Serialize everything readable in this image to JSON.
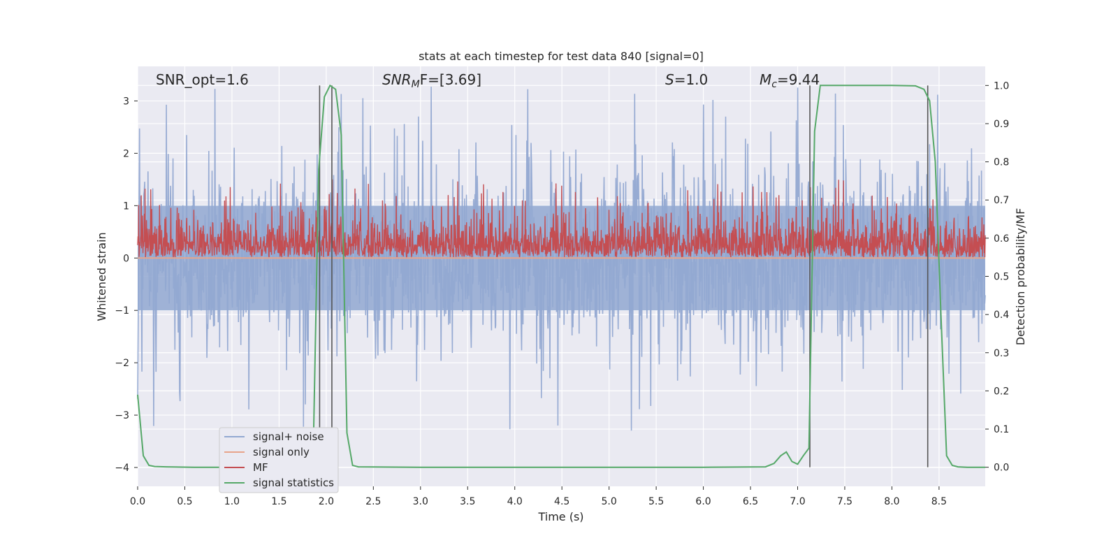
{
  "chart_data": {
    "type": "line",
    "title": "stats at each timestep for test data 840 [signal=0]",
    "xlabel": "Time (s)",
    "ylabel_left": "Whitened strain",
    "ylabel_right": "Detection probability/MF",
    "xlim": [
      0.0,
      8.99
    ],
    "ylim_left": [
      -4.36,
      3.66
    ],
    "ylim_right": [
      -0.05,
      1.05
    ],
    "x_ticks": [
      0.0,
      0.5,
      1.0,
      1.5,
      2.0,
      2.5,
      3.0,
      3.5,
      4.0,
      4.5,
      5.0,
      5.5,
      6.0,
      6.5,
      7.0,
      7.5,
      8.0,
      8.5
    ],
    "x_tick_labels": [
      "0.0",
      "0.5",
      "1.0",
      "1.5",
      "2.0",
      "2.5",
      "3.0",
      "3.5",
      "4.0",
      "4.5",
      "5.0",
      "5.5",
      "6.0",
      "6.5",
      "7.0",
      "7.5",
      "8.0",
      "8.5"
    ],
    "y_ticks_left": [
      -4,
      -3,
      -2,
      -1,
      0,
      1,
      2,
      3
    ],
    "y_tick_labels_left": [
      "−4",
      "−3",
      "−2",
      "−1",
      "0",
      "1",
      "2",
      "3"
    ],
    "y_ticks_right": [
      0.0,
      0.1,
      0.2,
      0.3,
      0.4,
      0.5,
      0.6,
      0.7,
      0.8,
      0.9,
      1.0
    ],
    "y_tick_labels_right": [
      "0.0",
      "0.1",
      "0.2",
      "0.3",
      "0.4",
      "0.5",
      "0.6",
      "0.7",
      "0.8",
      "0.9",
      "1.0"
    ],
    "grid": true,
    "legend_position": "lower-left",
    "annotations": {
      "snr_opt": "SNR_opt=1.6",
      "snr_mf_main": "SNR",
      "snr_mf_sub": "M",
      "snr_mf_rest": "F=[3.69]",
      "s_main": "S",
      "s_rest": "=1.0",
      "mc_main": "M",
      "mc_sub": "c",
      "mc_rest": "=9.44"
    },
    "series": [
      {
        "name": "signal+ noise",
        "color": "#92a8d1",
        "axis": "left",
        "description_level": "white noise approx. between -2.6 and 3.3 with rare spikes to -4.0",
        "envelope": {
          "low": -1.5,
          "high": 1.8,
          "spike_max": 3.3,
          "spike_min": -4.0
        }
      },
      {
        "name": "signal only",
        "color": "#e8a48a",
        "axis": "left",
        "values_constant": 0.0
      },
      {
        "name": "MF",
        "color": "#c44e52",
        "axis": "right",
        "envelope": {
          "low": 0.55,
          "high": 0.78
        }
      },
      {
        "name": "signal statistics",
        "color": "#55a868",
        "axis": "right",
        "x": [
          0.0,
          0.06,
          0.12,
          0.18,
          0.3,
          0.6,
          1.0,
          1.5,
          1.8,
          1.86,
          1.92,
          1.98,
          2.04,
          2.1,
          2.16,
          2.22,
          2.28,
          2.34,
          3.0,
          4.0,
          5.0,
          6.0,
          6.66,
          6.75,
          6.82,
          6.88,
          6.94,
          7.0,
          7.06,
          7.12,
          7.18,
          7.24,
          7.5,
          8.0,
          8.25,
          8.34,
          8.4,
          8.46,
          8.52,
          8.58,
          8.64,
          8.7,
          8.8,
          8.99
        ],
        "y": [
          0.19,
          0.03,
          0.005,
          0.002,
          0.001,
          0.0,
          0.0,
          0.0,
          0.001,
          0.01,
          0.78,
          0.97,
          1.0,
          0.99,
          0.87,
          0.09,
          0.005,
          0.001,
          0.0,
          0.0,
          0.0,
          0.0,
          0.001,
          0.01,
          0.03,
          0.04,
          0.015,
          0.008,
          0.03,
          0.05,
          0.88,
          1.0,
          1.0,
          1.0,
          0.999,
          0.99,
          0.96,
          0.8,
          0.4,
          0.03,
          0.005,
          0.001,
          0.0,
          0.0
        ]
      }
    ],
    "vertical_markers": [
      1.93,
      2.06,
      7.13,
      8.38
    ],
    "marker_color": "#555555"
  }
}
